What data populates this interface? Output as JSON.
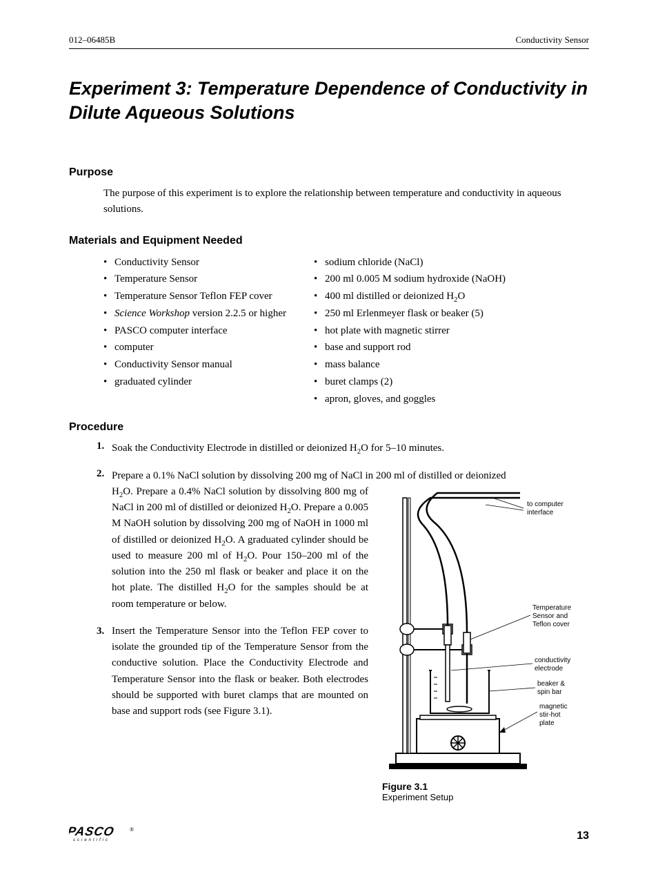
{
  "header": {
    "left": "012–06485B",
    "right": "Conductivity Sensor"
  },
  "title": "Experiment 3:  Temperature Dependence of Conductivity in Dilute Aqueous Solutions",
  "sections": {
    "purpose": {
      "heading": "Purpose",
      "body": "The purpose of this experiment is to explore the relationship between temperature and conductivity in aqueous solutions."
    },
    "materials": {
      "heading": "Materials and Equipment Needed",
      "left_col": [
        "Conductivity Sensor",
        "Temperature Sensor",
        "Temperature Sensor Teflon  FEP cover",
        "<em>Science Workshop</em> version 2.2.5 or higher",
        "PASCO computer interface",
        "computer",
        "Conductivity Sensor manual",
        "graduated cylinder"
      ],
      "right_col": [
        "sodium chloride (NaCl)",
        "200 ml 0.005 M sodium hydroxide  (NaOH)",
        "400 ml distilled or deionized  H<span class=\"sub\">2</span>O",
        "250 ml Erlenmeyer flask or beaker (5)",
        "hot plate with magnetic stirrer",
        "base and support rod",
        "mass balance",
        "buret clamps  (2)",
        "apron, gloves, and goggles"
      ]
    },
    "procedure": {
      "heading": "Procedure",
      "step1": "Soak the Conductivity Electrode in distilled or deionized H<span class=\"sub\">2</span>O for 5–10 minutes.",
      "step2_a": "Prepare a 0.1% NaCl solution by dissolving 200 mg of NaCl in 200 ml of distilled or deionized",
      "step2_b": "H<span class=\"sub\">2</span>O.  Prepare a 0.4% NaCl solution by dissolving 800 mg of NaCl in 200 ml of distilled or deionized H<span class=\"sub\">2</span>O. Prepare a 0.005 M NaOH solution by dissolving 200 mg of NaOH in 1000 ml of distilled or deionized H<span class=\"sub\">2</span>O. A graduated cylinder should be used to measure 200 ml of H<span class=\"sub\">2</span>O. Pour 150–200 ml of the solution into the 250 ml flask or beaker and place it on the hot plate. The distilled H<span class=\"sub\">2</span>O for the samples should be at room temperature or below.",
      "step3": "Insert the Temperature Sensor into the Teflon FEP cover to isolate the grounded tip of the Temperature Sensor from the conductive solution. Place the Conductivity Electrode  and Temperature Sensor into the flask or beaker. Both electrodes should be supported with buret clamps that are mounted on base and support rods (see Figure 3.1)."
    },
    "figure": {
      "caption_bold": "Figure 3.1",
      "caption_plain": "Experiment Setup",
      "labels": {
        "computer": "to computer interface",
        "temp": "Temperature Sensor and Teflon cover",
        "elec": "conductivity electrode",
        "beaker": "beaker & spin bar",
        "plate": "magnetic stir-hot plate"
      }
    }
  },
  "footer": {
    "page": "13"
  },
  "colors": {
    "text": "#000000",
    "bg": "#ffffff"
  }
}
